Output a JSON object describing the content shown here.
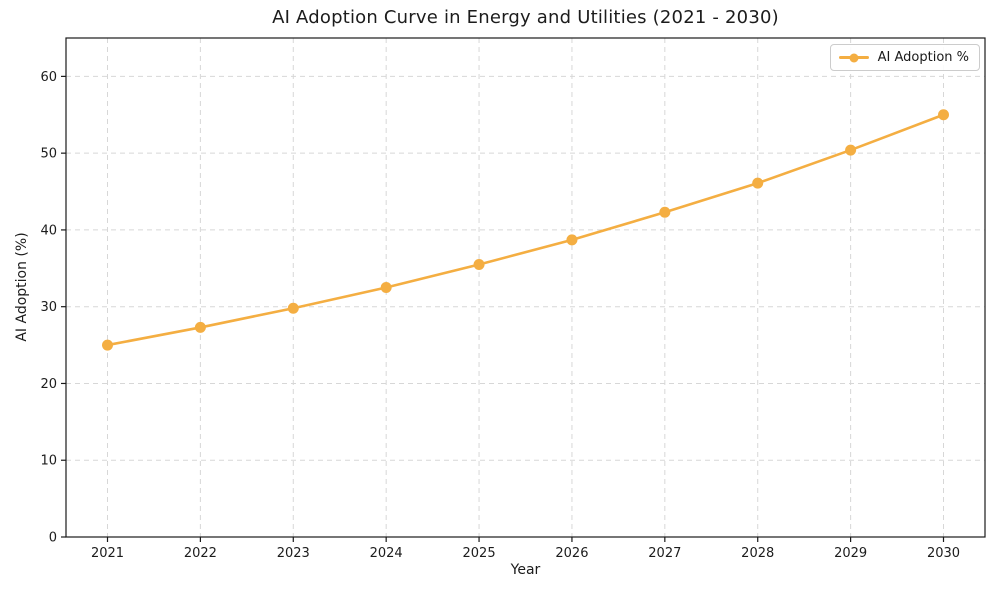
{
  "chart_data": {
    "type": "line",
    "title": "AI Adoption Curve in Energy and Utilities (2021 - 2030)",
    "xlabel": "Year",
    "ylabel": "AI Adoption (%)",
    "x": [
      2021,
      2022,
      2023,
      2024,
      2025,
      2026,
      2027,
      2028,
      2029,
      2030
    ],
    "series": [
      {
        "name": "AI Adoption %",
        "color": "#F4AE42",
        "values": [
          25.0,
          27.3,
          29.8,
          32.5,
          35.5,
          38.7,
          42.3,
          46.1,
          50.4,
          55.0
        ]
      }
    ],
    "ylim": [
      0,
      65
    ],
    "yticks": [
      0,
      10,
      20,
      30,
      40,
      50,
      60
    ],
    "grid": true,
    "grid_line_style": "dashed",
    "grid_color": "#d7d7d7",
    "spine_color": "#1a1a1a",
    "tick_label_color": "#1c1c1c",
    "legend": {
      "label": "AI Adoption %",
      "position": "upper-right"
    }
  }
}
